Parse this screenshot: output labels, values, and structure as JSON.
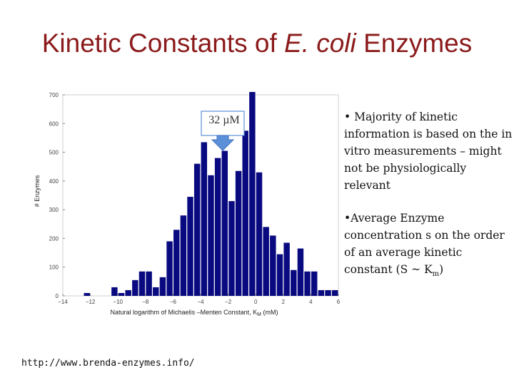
{
  "slide": {
    "title_pre": "Kinetic Constants of ",
    "title_italic": "E. coli",
    "title_post": " Enzymes",
    "annotation": "32 µM",
    "bullet1": "• Majority of kinetic information is based on the in vitro measurements – might not be physiologically relevant",
    "bullet2_pre": "•Average Enzyme concentration s on the order of an average kinetic constant (S ~ K",
    "bullet2_sub": "m",
    "bullet2_post": ")",
    "source_url": "http://www.brenda-enzymes.info/"
  },
  "chart_data": {
    "type": "bar",
    "xlabel": "Natural logarithm of Michaelis –Menten Constant, K",
    "xlabel_sub": "M",
    "xlabel_suffix": " (mM)",
    "ylabel": "# Enzymes",
    "xlim": [
      -14,
      6
    ],
    "ylim": [
      0,
      700
    ],
    "xticks": [
      -14,
      -12,
      -10,
      -8,
      -6,
      -4,
      -2,
      0,
      2,
      4,
      6
    ],
    "yticks": [
      0,
      100,
      200,
      300,
      400,
      500,
      600,
      700
    ],
    "bin_width": 0.5,
    "bin_starts": [
      -12.5,
      -10.5,
      -10,
      -9.5,
      -9,
      -8.5,
      -8,
      -7.5,
      -7,
      -6.5,
      -6,
      -5.5,
      -5,
      -4.5,
      -4,
      -3.5,
      -3,
      -2.5,
      -2,
      -1.5,
      -1,
      -0.5,
      0,
      0.5,
      1,
      1.5,
      2,
      2.5,
      3,
      3.5,
      4,
      4.5,
      5,
      5.5
    ],
    "values": [
      10,
      30,
      10,
      20,
      55,
      85,
      85,
      30,
      65,
      190,
      230,
      280,
      345,
      460,
      535,
      420,
      480,
      505,
      330,
      435,
      575,
      710,
      430,
      240,
      210,
      145,
      185,
      90,
      165,
      85,
      85,
      20,
      20,
      20
    ],
    "bar_color": "#0a0a80",
    "arrow_color": "#5b8fd8"
  }
}
